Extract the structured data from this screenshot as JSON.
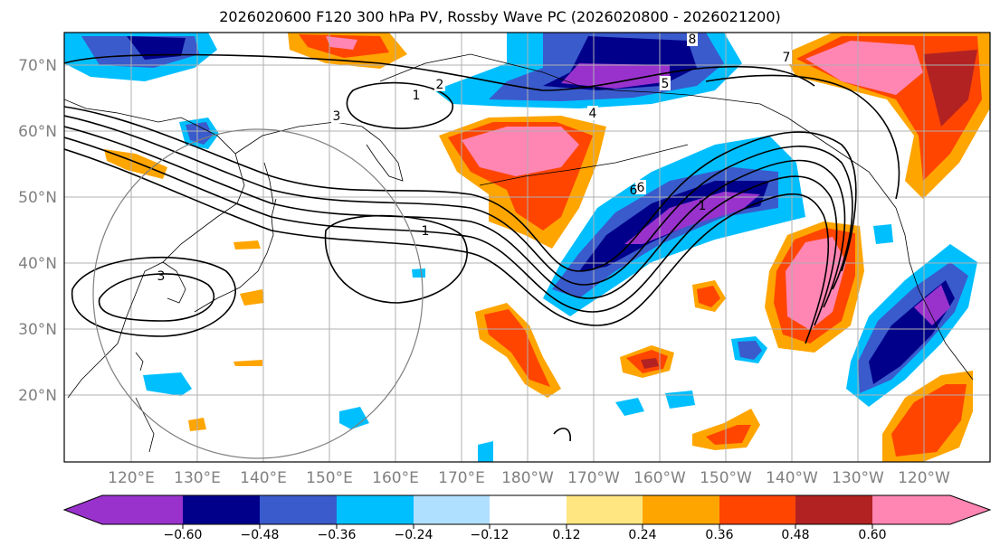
{
  "title": "2026020600 F120 300 hPa PV, Rossby Wave PC (2026020800 - 2026021200)",
  "lat_labels": [
    "70°N",
    "60°N",
    "50°N",
    "40°N",
    "30°N",
    "20°N"
  ],
  "lon_labels": [
    "120°E",
    "130°E",
    "140°E",
    "150°E",
    "160°E",
    "170°E",
    "180°W",
    "170°W",
    "160°W",
    "150°W",
    "140°W",
    "130°W",
    "120°W"
  ],
  "colorbar": {
    "ticks": [
      "−0.60",
      "−0.48",
      "−0.36",
      "−0.24",
      "−0.12",
      "0.12",
      "0.24",
      "0.36",
      "0.48",
      "0.60"
    ],
    "colors": [
      "#9932cc",
      "#00008b",
      "#3a5bcc",
      "#00bfff",
      "#b0e0ff",
      "#ffffff",
      "#ffe680",
      "#ffa500",
      "#ff4500",
      "#b22222",
      "#ff85b3"
    ]
  },
  "contour_labels": [
    "1",
    "2",
    "3",
    "4",
    "5",
    "6",
    "8",
    "7"
  ],
  "colors": {
    "grid": "#b0b0b0",
    "coast": "#000000",
    "contour": "#000000",
    "circle": "#808080",
    "axis_label": "#808080"
  }
}
